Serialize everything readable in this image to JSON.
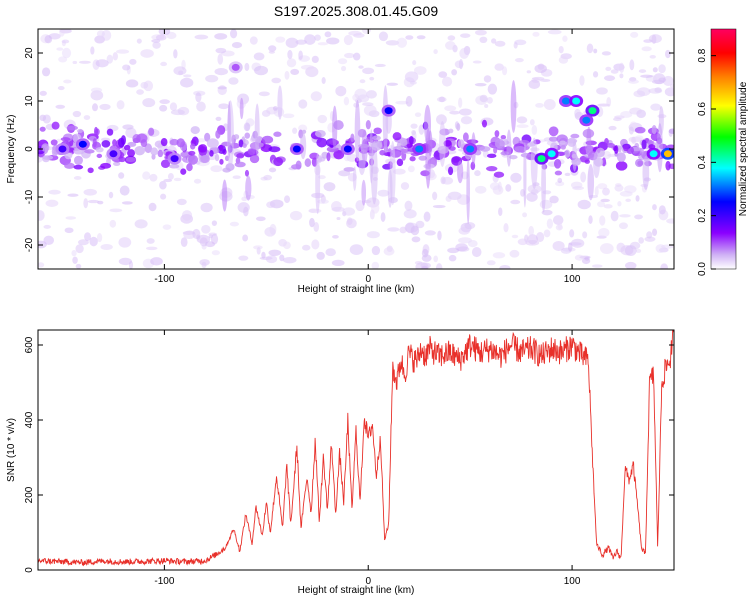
{
  "title": "S197.2025.308.01.45.G09",
  "colors": {
    "snr_line": "#e8302a",
    "spectro_light": "#cfb0f5",
    "spectro_mid": "#8a2be2",
    "spectro_strong": "#4b1fd8",
    "axis": "#000000",
    "background": "#ffffff"
  },
  "chart_data": [
    {
      "type": "heatmap",
      "title": "S197.2025.308.01.45.G09",
      "xlabel": "Height of straight line (km)",
      "ylabel": "Frequency (Hz)",
      "xlim": [
        -162,
        150
      ],
      "ylim": [
        -25,
        25
      ],
      "x_ticks": [
        -100,
        0,
        100
      ],
      "y_ticks": [
        -20,
        -10,
        0,
        10,
        20
      ],
      "colorbar": {
        "label": "Normalized spectral amplitude",
        "range": [
          0,
          0.9
        ],
        "ticks": [
          0.0,
          0.2,
          0.4,
          0.6,
          0.8
        ],
        "tick_labels": [
          "0.0",
          "0.2",
          "0.4",
          "0.6",
          "0.8"
        ],
        "colormap": [
          "#ffffff",
          "#cfb0f5",
          "#8a00ff",
          "#0000ff",
          "#00ffff",
          "#00ff00",
          "#ffff00",
          "#ff8000",
          "#ff0000",
          "#ff0060"
        ]
      },
      "features": [
        {
          "x": -150,
          "y": 0,
          "amp": 0.25
        },
        {
          "x": -140,
          "y": 1,
          "amp": 0.3
        },
        {
          "x": -125,
          "y": -1,
          "amp": 0.25
        },
        {
          "x": -95,
          "y": -2,
          "amp": 0.25
        },
        {
          "x": -65,
          "y": 17,
          "amp": 0.15
        },
        {
          "x": -35,
          "y": 0,
          "amp": 0.3
        },
        {
          "x": -10,
          "y": 0,
          "amp": 0.3
        },
        {
          "x": 10,
          "y": 8,
          "amp": 0.3
        },
        {
          "x": 25,
          "y": 0,
          "amp": 0.35
        },
        {
          "x": 50,
          "y": 0,
          "amp": 0.35
        },
        {
          "x": 85,
          "y": -2,
          "amp": 0.45
        },
        {
          "x": 90,
          "y": -1,
          "amp": 0.4
        },
        {
          "x": 97,
          "y": 10,
          "amp": 0.35
        },
        {
          "x": 102,
          "y": 10,
          "amp": 0.4
        },
        {
          "x": 110,
          "y": 8,
          "amp": 0.45
        },
        {
          "x": 107,
          "y": 6,
          "amp": 0.35
        },
        {
          "x": 140,
          "y": -1,
          "amp": 0.4
        },
        {
          "x": 147,
          "y": -1,
          "amp": 0.65
        }
      ]
    },
    {
      "type": "line",
      "xlabel": "Height of straight line (km)",
      "ylabel": "SNR (10 * v/v)",
      "xlim": [
        -162,
        150
      ],
      "ylim": [
        0,
        640
      ],
      "x_ticks": [
        -100,
        0,
        100
      ],
      "y_ticks": [
        0,
        200,
        400,
        600
      ],
      "series": [
        {
          "name": "SNR",
          "x": [
            -162,
            -150,
            -140,
            -130,
            -120,
            -110,
            -100,
            -90,
            -80,
            -75,
            -70,
            -66,
            -63,
            -60,
            -57,
            -55,
            -52,
            -50,
            -48,
            -45,
            -42,
            -40,
            -38,
            -35,
            -33,
            -30,
            -28,
            -26,
            -24,
            -22,
            -20,
            -18,
            -16,
            -14,
            -12,
            -10,
            -8,
            -6,
            -4,
            -2,
            0,
            2,
            4,
            6,
            8,
            10,
            12,
            14,
            16,
            18,
            20,
            22,
            24,
            26,
            28,
            30,
            35,
            40,
            45,
            50,
            55,
            60,
            65,
            70,
            75,
            80,
            85,
            90,
            95,
            100,
            105,
            108,
            110,
            112,
            115,
            118,
            120,
            122,
            124,
            126,
            128,
            130,
            132,
            134,
            136,
            138,
            140,
            142,
            144,
            146,
            148,
            150
          ],
          "values": [
            25,
            22,
            20,
            24,
            22,
            23,
            25,
            22,
            25,
            40,
            60,
            110,
            50,
            150,
            70,
            170,
            90,
            180,
            100,
            250,
            110,
            280,
            120,
            330,
            110,
            250,
            150,
            350,
            130,
            300,
            160,
            340,
            150,
            310,
            180,
            400,
            160,
            370,
            180,
            410,
            350,
            390,
            250,
            360,
            80,
            120,
            540,
            500,
            560,
            520,
            580,
            560,
            560,
            590,
            570,
            590,
            570,
            580,
            560,
            600,
            580,
            590,
            570,
            600,
            580,
            590,
            570,
            590,
            580,
            600,
            570,
            560,
            300,
            70,
            40,
            60,
            30,
            50,
            30,
            270,
            240,
            280,
            180,
            60,
            40,
            500,
            520,
            60,
            500,
            540,
            560,
            640
          ]
        }
      ]
    }
  ]
}
